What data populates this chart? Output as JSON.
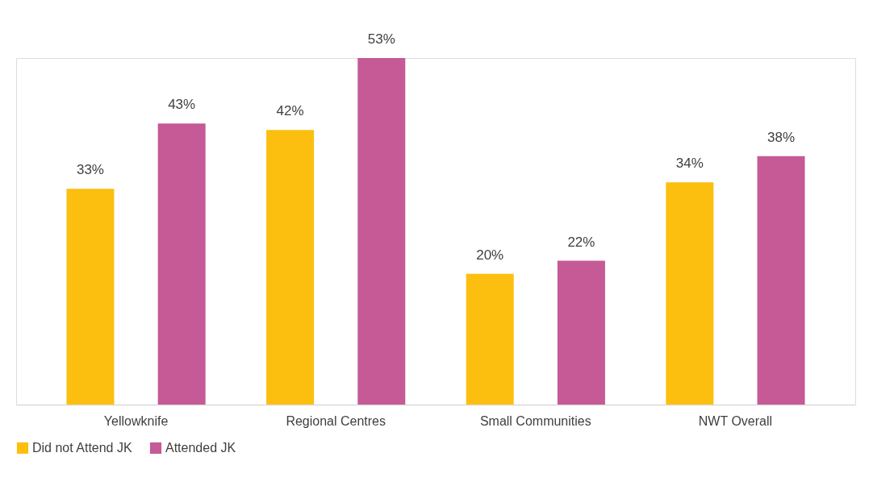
{
  "chart_data": {
    "type": "bar",
    "categories": [
      "Yellowknife",
      "Regional Centres",
      "Small Communities",
      "NWT Overall"
    ],
    "series": [
      {
        "name": "Did not Attend JK",
        "color": "#fcbf10",
        "values": [
          33,
          42,
          20,
          34
        ],
        "value_labels": [
          "33%",
          "42%",
          "20%",
          "34%"
        ]
      },
      {
        "name": "Attended JK",
        "color": "#c55a96",
        "values": [
          43,
          53,
          22,
          38
        ],
        "value_labels": [
          "43%",
          "53%",
          "22%",
          "38%"
        ]
      }
    ],
    "legend": "bottom",
    "grid": false
  }
}
